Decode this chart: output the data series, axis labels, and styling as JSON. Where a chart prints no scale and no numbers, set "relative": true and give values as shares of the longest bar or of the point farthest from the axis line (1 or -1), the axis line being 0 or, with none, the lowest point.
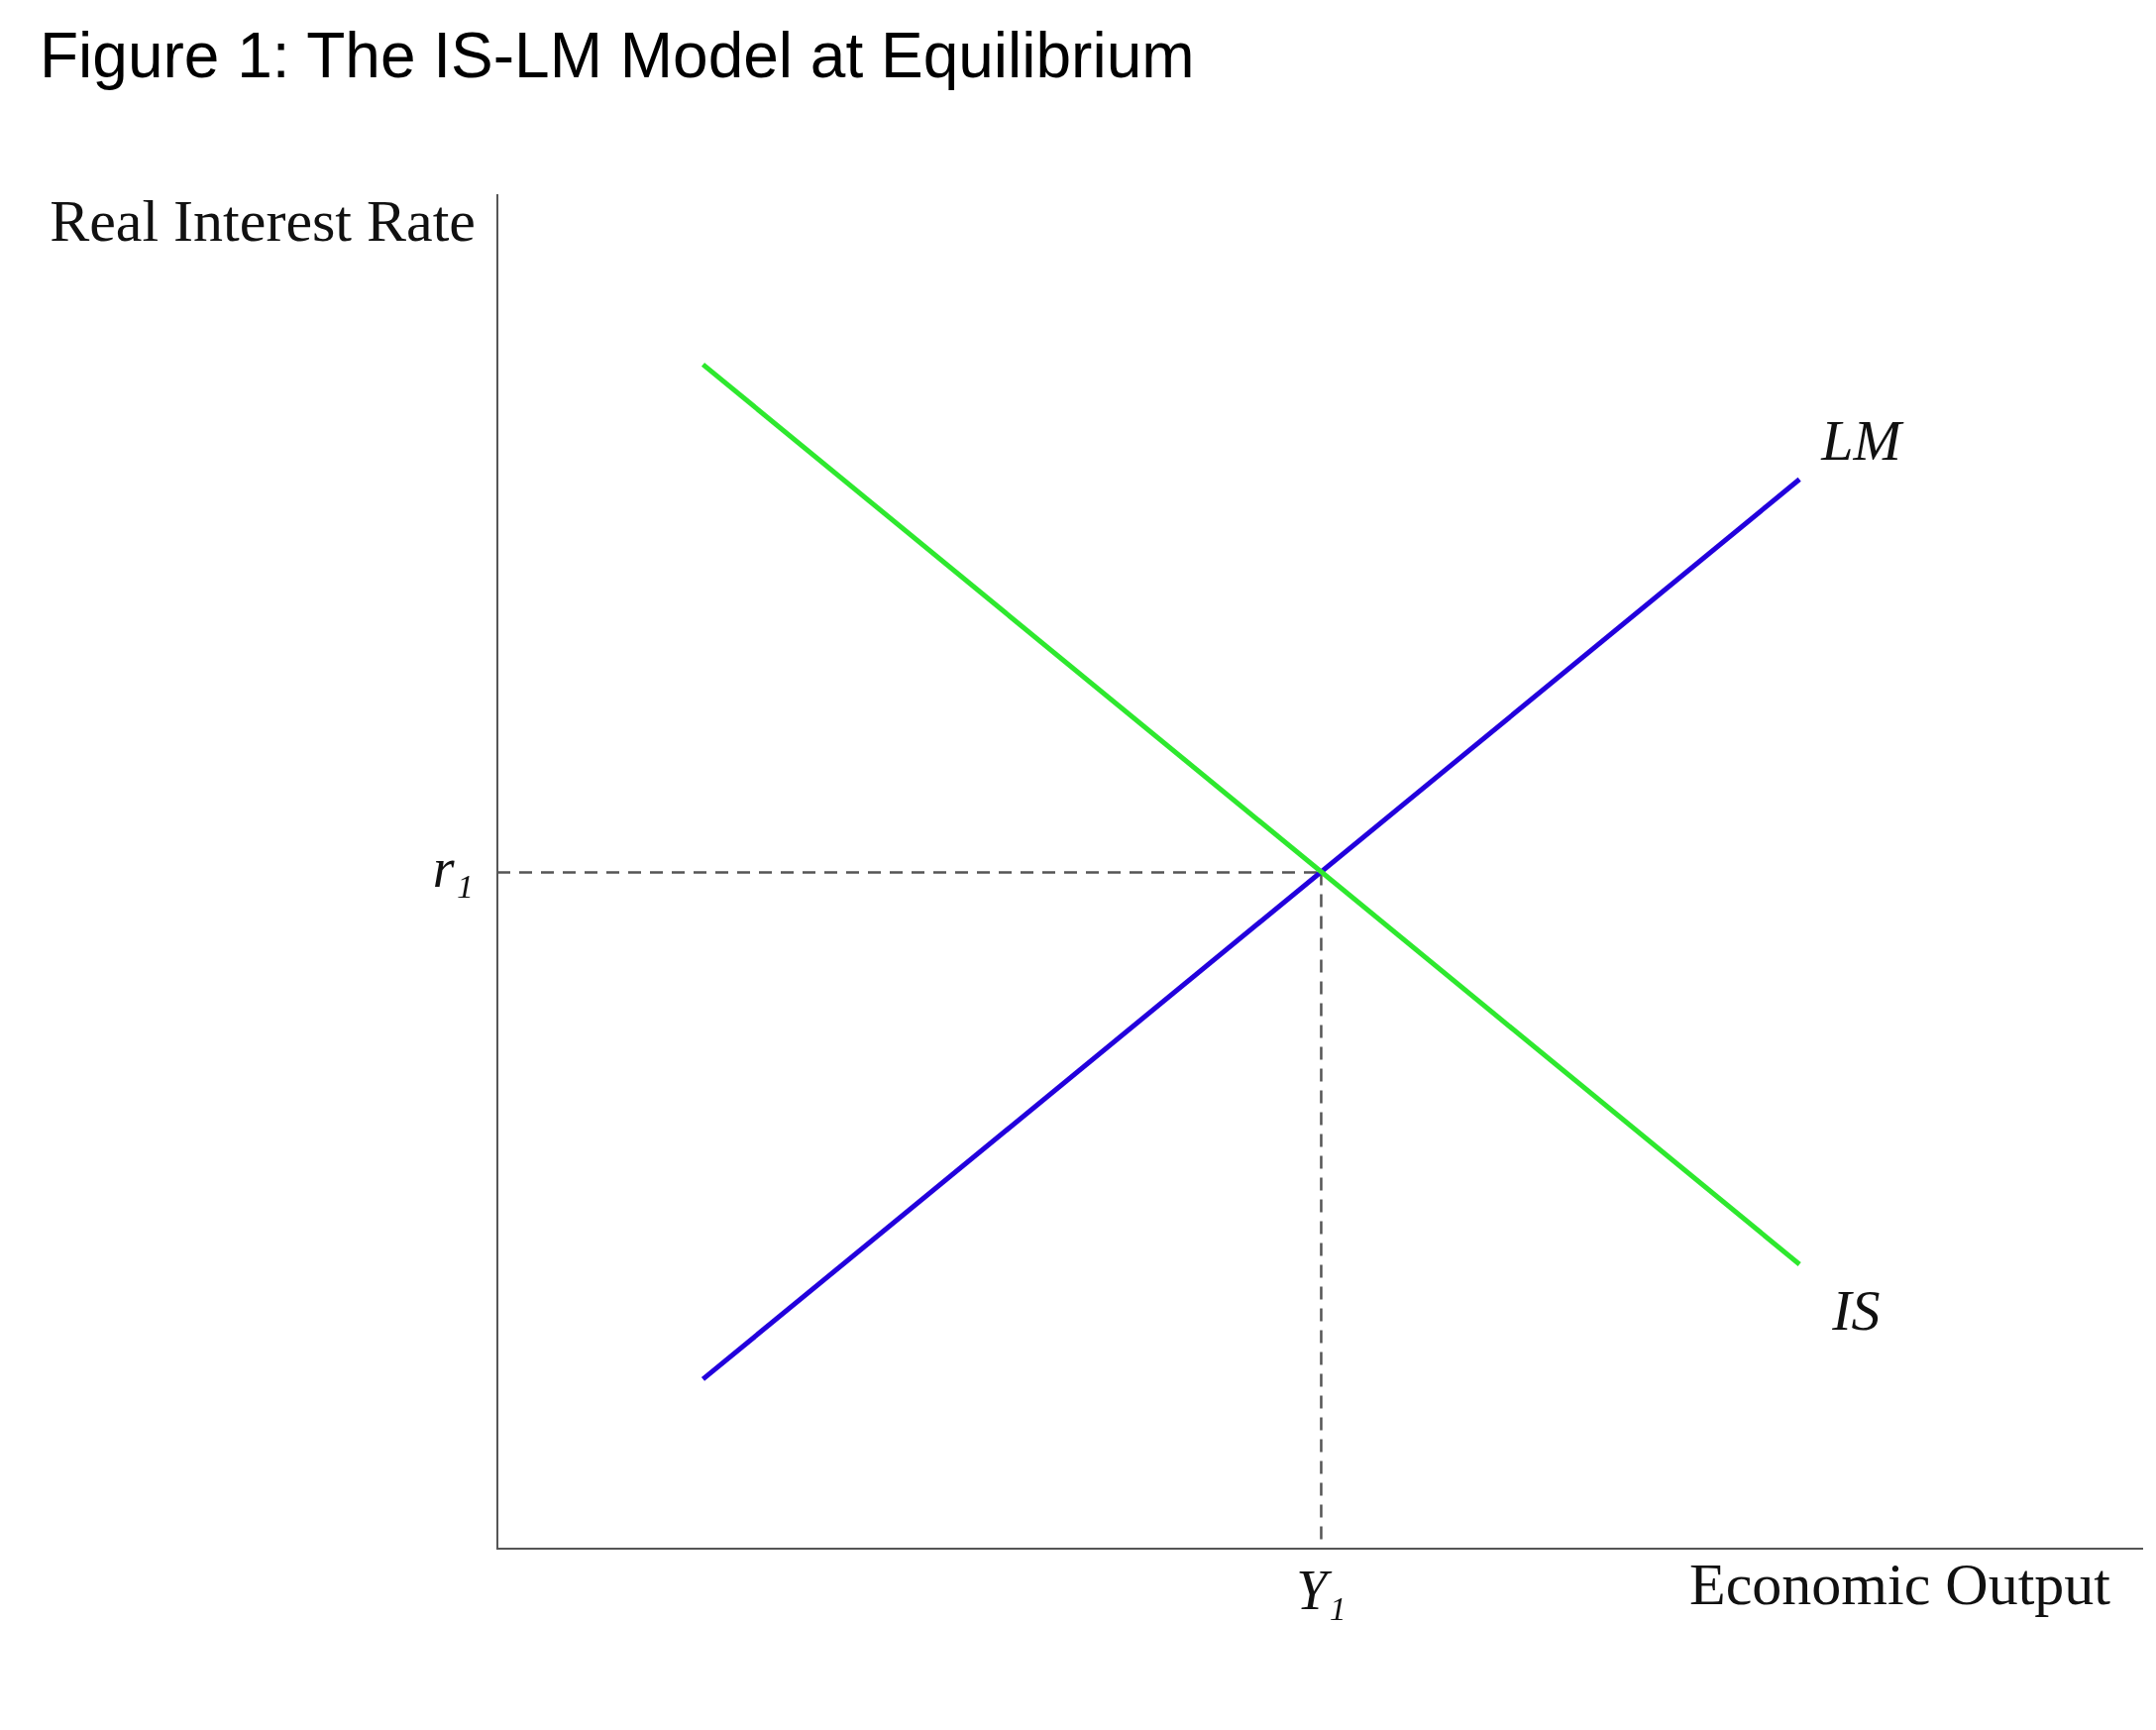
{
  "chart_data": {
    "type": "line",
    "title": "Figure 1: The IS-LM Model at Equilibrium",
    "xlabel": "Economic Output",
    "ylabel": "Real Interest Rate",
    "relative": true,
    "marker": "none",
    "annotations": [
      "Y₁"
    ],
    "categories": [
      null,
      null,
      null,
      null,
      null,
      null,
      null,
      null,
      null,
      null,
      null,
      null,
      null,
      null,
      null,
      null,
      null,
      null,
      null,
      null,
      null,
      null,
      null,
      null,
      null
    ],
    "series": [
      {
        "name": "IS",
        "color": "#2ee82e",
        "values": [
          null,
          null,
          null,
          1,
          null,
          null,
          null,
          null,
          null,
          null,
          null,
          null,
          null,
          null,
          null,
          null,
          null,
          null,
          null,
          0.24,
          null,
          null,
          null,
          null,
          null
        ]
      },
      {
        "name": "LM",
        "color": "#2200dd",
        "values": [
          null,
          null,
          null,
          0.143,
          null,
          null,
          null,
          null,
          null,
          null,
          null,
          null,
          null,
          null,
          null,
          null,
          null,
          null,
          null,
          0.903,
          null,
          null,
          null,
          null,
          null
        ]
      }
    ],
    "ref_lines": [
      {
        "axis": "y",
        "value": 0.571,
        "label": "r₁",
        "color": "#555555",
        "line_style": "dashed"
      }
    ]
  }
}
